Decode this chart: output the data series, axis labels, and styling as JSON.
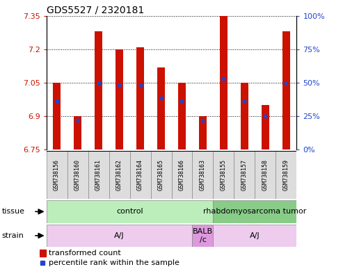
{
  "title": "GDS5527 / 2320181",
  "samples": [
    "GSM738156",
    "GSM738160",
    "GSM738161",
    "GSM738162",
    "GSM738164",
    "GSM738165",
    "GSM738166",
    "GSM738163",
    "GSM738155",
    "GSM738157",
    "GSM738158",
    "GSM738159"
  ],
  "bar_tops": [
    7.05,
    6.9,
    7.28,
    7.2,
    7.21,
    7.12,
    7.05,
    6.9,
    7.35,
    7.05,
    6.95,
    7.28
  ],
  "bar_bottoms": [
    6.75,
    6.75,
    6.75,
    6.75,
    6.75,
    6.75,
    6.75,
    6.75,
    6.75,
    6.75,
    6.75,
    6.75
  ],
  "blue_markers": [
    6.97,
    6.88,
    7.05,
    7.04,
    7.04,
    6.98,
    6.97,
    6.88,
    7.07,
    6.97,
    6.9,
    7.05
  ],
  "ylim": [
    6.75,
    7.35
  ],
  "yticks_left": [
    6.75,
    6.9,
    7.05,
    7.2,
    7.35
  ],
  "yticks_right_pct": [
    0,
    25,
    50,
    75,
    100
  ],
  "bar_color": "#cc1100",
  "blue_color": "#2244cc",
  "tissue_groups": [
    {
      "text": "control",
      "start": 0,
      "end": 7,
      "color": "#bbeebb"
    },
    {
      "text": "rhabdomyosarcoma tumor",
      "start": 8,
      "end": 11,
      "color": "#88cc88"
    }
  ],
  "strain_groups": [
    {
      "text": "A/J",
      "start": 0,
      "end": 6,
      "color": "#eeccee"
    },
    {
      "text": "BALB\n/c",
      "start": 7,
      "end": 7,
      "color": "#dd99dd"
    },
    {
      "text": "A/J",
      "start": 8,
      "end": 11,
      "color": "#eeccee"
    }
  ],
  "bar_width": 0.35,
  "sample_label_fontsize": 6,
  "tick_fontsize": 8,
  "title_fontsize": 10,
  "legend_fontsize": 8,
  "row_label_fontsize": 8,
  "group_label_fontsize": 8,
  "background_color": "#ffffff",
  "left_tick_color": "#cc1100",
  "right_tick_color": "#2244cc",
  "grid_linestyle": "dotted",
  "grid_color": "#000000",
  "grid_linewidth": 0.7,
  "sample_box_color": "#dddddd",
  "sample_box_edge": "#888888"
}
